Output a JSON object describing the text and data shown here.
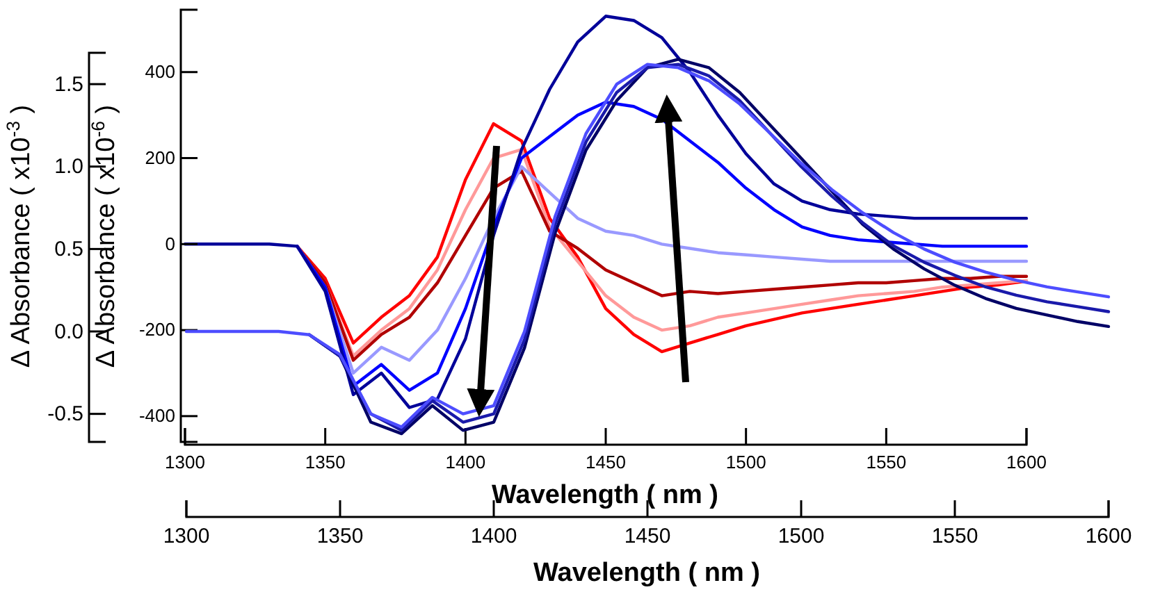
{
  "chart_data": [
    {
      "type": "line",
      "xlabel": "Wavelength ( nm )",
      "ylabel": "Δ Absorbance ( x10$^{-6}$ )",
      "xlim": [
        1300,
        1600
      ],
      "ylim": [
        -460,
        545
      ],
      "xticks": [
        1300,
        1350,
        1400,
        1450,
        1500,
        1550,
        1600
      ],
      "yticks": [
        -400,
        -200,
        0,
        200,
        400
      ],
      "x": [
        1300,
        1310,
        1320,
        1330,
        1340,
        1350,
        1360,
        1370,
        1380,
        1390,
        1400,
        1410,
        1420,
        1430,
        1440,
        1450,
        1460,
        1470,
        1480,
        1490,
        1500,
        1510,
        1520,
        1530,
        1540,
        1550,
        1560,
        1570,
        1580,
        1590,
        1600
      ],
      "series": [
        {
          "color": "#ff0000",
          "values": [
            null,
            null,
            null,
            null,
            -5,
            -80,
            -230,
            -170,
            -120,
            -30,
            150,
            280,
            240,
            60,
            -30,
            -150,
            -210,
            -250,
            -230,
            -210,
            -190,
            -175,
            -160,
            -150,
            -140,
            -130,
            -120,
            -110,
            -100,
            -95,
            -86
          ]
        },
        {
          "color": "#ff9999",
          "values": [
            null,
            null,
            null,
            null,
            -5,
            -90,
            -260,
            -200,
            -150,
            -60,
            80,
            200,
            220,
            40,
            -40,
            -120,
            -170,
            -200,
            -190,
            -170,
            -160,
            -150,
            -140,
            -130,
            -120,
            -115,
            -110,
            -100,
            -95,
            -90,
            -85
          ]
        },
        {
          "color": "#b00000",
          "values": [
            null,
            null,
            null,
            null,
            -5,
            -90,
            -270,
            -210,
            -170,
            -90,
            20,
            130,
            170,
            30,
            -10,
            -60,
            -90,
            -120,
            -110,
            -115,
            -110,
            -105,
            -100,
            -95,
            -90,
            -90,
            -85,
            -80,
            -80,
            -75,
            -75
          ]
        },
        {
          "color": "#9999ff",
          "values": [
            null,
            null,
            null,
            null,
            -5,
            -100,
            -300,
            -240,
            -270,
            -200,
            -80,
            60,
            180,
            120,
            60,
            30,
            20,
            0,
            -10,
            -20,
            -25,
            -30,
            -35,
            -40,
            -40,
            -40,
            -40,
            -40,
            -40,
            -40,
            -40
          ]
        },
        {
          "color": "#0000ff",
          "values": [
            null,
            null,
            null,
            null,
            -5,
            -100,
            -330,
            -280,
            -340,
            -300,
            -150,
            40,
            200,
            250,
            300,
            330,
            320,
            290,
            240,
            190,
            130,
            80,
            40,
            20,
            10,
            5,
            0,
            -5,
            -5,
            -5,
            -5
          ]
        },
        {
          "color": "#000099",
          "values": [
            0,
            0,
            0,
            0,
            -5,
            -110,
            -350,
            -300,
            -380,
            -360,
            -220,
            20,
            220,
            360,
            470,
            530,
            520,
            480,
            400,
            300,
            210,
            140,
            100,
            80,
            70,
            65,
            60,
            60,
            60,
            60,
            60
          ]
        }
      ]
    },
    {
      "type": "line",
      "xlabel": "Wavelength ( nm )",
      "ylabel": "Δ Absorbance ( x10$^{-3}$ )",
      "xlim": [
        1300,
        1600
      ],
      "ylim": [
        -0.67,
        1.69
      ],
      "xticks": [
        1300,
        1350,
        1400,
        1450,
        1500,
        1550,
        1600
      ],
      "yticks": [
        {
          "value": -0.5,
          "label": "-0.5"
        },
        {
          "value": 0,
          "label": "0.0"
        },
        0.5,
        {
          "value": 1,
          "label": "1.0"
        },
        1.5
      ],
      "x": [
        1300,
        1310,
        1320,
        1330,
        1340,
        1350,
        1360,
        1370,
        1380,
        1390,
        1400,
        1410,
        1420,
        1430,
        1440,
        1450,
        1460,
        1470,
        1480,
        1490,
        1500,
        1510,
        1520,
        1530,
        1540,
        1550,
        1560,
        1570,
        1580,
        1590,
        1600
      ],
      "series": [
        {
          "color": "#000066",
          "values": [
            null,
            null,
            null,
            null,
            -0.02,
            -0.15,
            -0.55,
            -0.62,
            -0.45,
            -0.6,
            -0.55,
            -0.1,
            0.6,
            1.1,
            1.4,
            1.6,
            1.65,
            1.6,
            1.45,
            1.25,
            1.05,
            0.85,
            0.65,
            0.5,
            0.38,
            0.28,
            0.2,
            0.14,
            0.1,
            0.06,
            0.03
          ]
        },
        {
          "color": "#1a1aaa",
          "values": [
            null,
            null,
            null,
            null,
            -0.02,
            -0.15,
            -0.5,
            -0.6,
            -0.42,
            -0.55,
            -0.5,
            -0.05,
            0.65,
            1.15,
            1.45,
            1.6,
            1.62,
            1.55,
            1.4,
            1.2,
            1.0,
            0.82,
            0.66,
            0.52,
            0.42,
            0.34,
            0.27,
            0.22,
            0.18,
            0.15,
            0.12
          ]
        },
        {
          "color": "#4d4dff",
          "values": [
            0,
            0,
            0,
            0,
            -0.02,
            -0.14,
            -0.5,
            -0.58,
            -0.4,
            -0.5,
            -0.45,
            0,
            0.7,
            1.2,
            1.5,
            1.62,
            1.6,
            1.52,
            1.38,
            1.2,
            1.02,
            0.86,
            0.72,
            0.6,
            0.5,
            0.42,
            0.36,
            0.31,
            0.27,
            0.24,
            0.21
          ]
        }
      ]
    }
  ]
}
